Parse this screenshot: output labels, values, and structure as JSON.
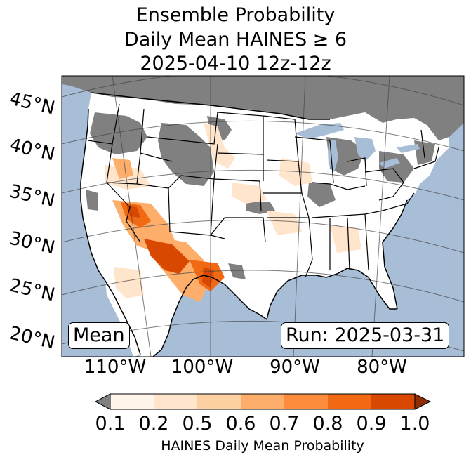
{
  "title": {
    "line1": "Ensemble Probability",
    "line2": "Daily Mean HAINES ≥ 6",
    "line3": "2025-04-10 12z-12z"
  },
  "map": {
    "ocean_color": "#a8bdd6",
    "land_color": "#ffffff",
    "no_data_color": "#808080",
    "lat_labels": [
      "45°N",
      "40°N",
      "35°N",
      "30°N",
      "25°N",
      "20°N"
    ],
    "lon_labels": [
      "110°W",
      "100°W",
      "90°W",
      "80°W"
    ],
    "stat_label": "Mean",
    "run_label": "Run: 2025-03-31"
  },
  "colorbar": {
    "ticks": [
      "0.1",
      "0.2",
      "0.5",
      "0.6",
      "0.7",
      "0.8",
      "0.9",
      "1.0"
    ],
    "colors": [
      "#fff5eb",
      "#fee5cc",
      "#fdd0a2",
      "#fdae6b",
      "#fd8d3c",
      "#f16913",
      "#d94801",
      "#8c2d04"
    ],
    "under_color": "#808080",
    "label": "HAINES Daily Mean Probability"
  }
}
